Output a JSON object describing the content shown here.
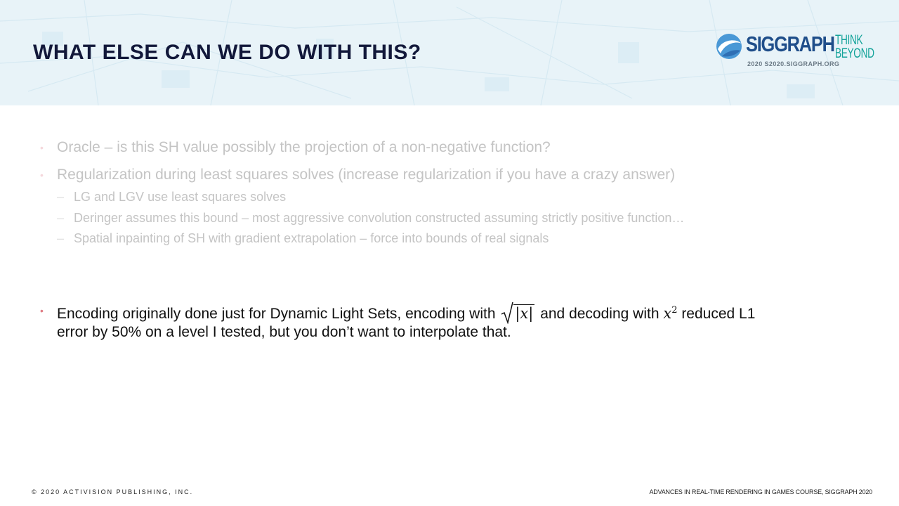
{
  "slide": {
    "title": "WHAT ELSE CAN WE DO WITH THIS?"
  },
  "logo": {
    "wordmark": "SIGGRAPH",
    "think": "THINK",
    "beyond": "BEYOND",
    "year": "2020",
    "url": "S2020.SIGGRAPH.ORG"
  },
  "bullets": [
    {
      "text": "Oracle – is this SH value possibly the projection of a non-negative function?"
    },
    {
      "text": "Regularization during least squares solves (increase regularization if you have a crazy answer)"
    }
  ],
  "subbullets": [
    {
      "text": "LG and LGV use least squares solves"
    },
    {
      "text": "Deringer assumes this bound – most aggressive convolution constructed assuming strictly positive function…"
    },
    {
      "text": "Spatial inpainting of SH with gradient extrapolation – force into bounds of real signals"
    }
  ],
  "active_bullet": {
    "part1": "Encoding originally done just for Dynamic Light Sets, encoding with",
    "sqrt_content": "|x|",
    "part2": "and decoding with",
    "var": "x",
    "exp": "2",
    "part3": "reduced L1",
    "line2": "error by 50% on a level I tested, but you don’t want to interpolate that."
  },
  "footer": {
    "left": "© 2020 ACTIVISION PUBLISHING, INC.",
    "right": "ADVANCES IN REAL-TIME RENDERING IN GAMES COURSE, SIGGRAPH 2020"
  },
  "colors": {
    "title": "#12183a",
    "header_bg": "#e8f3f8",
    "bullet_dot": "#e07e86",
    "faded_text": "#c4c4c4",
    "logo_blue": "#1f4e8a",
    "logo_teal": "#14a39a"
  }
}
